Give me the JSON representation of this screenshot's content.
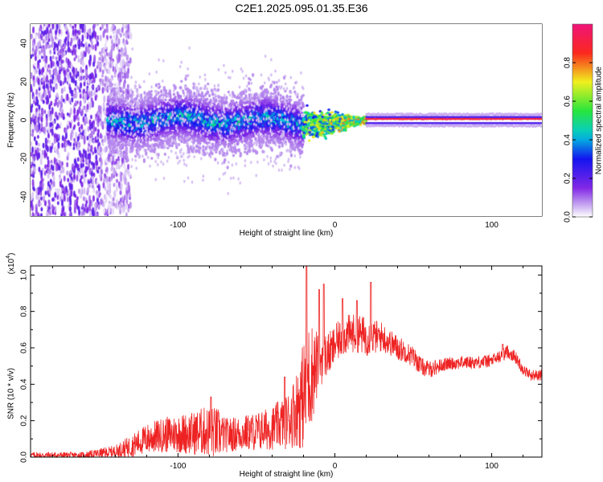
{
  "title": "C2E1.2025.095.01.35.E36",
  "colors": {
    "snr_line": "#ee2222",
    "axis": "#000000",
    "spectro_background": "#ffffff"
  },
  "chart_data": [
    {
      "type": "heatmap",
      "title": "C2E1.2025.095.01.35.E36",
      "xlabel": "Height of straight line (km)",
      "ylabel": "Frequency (Hz)",
      "xlim": [
        -194,
        132
      ],
      "ylim": [
        -50,
        50
      ],
      "xticks": [
        -100,
        0,
        100
      ],
      "yticks": [
        -40,
        -20,
        0,
        20,
        40
      ],
      "grid": false,
      "colorbar": {
        "label": "Normalized spectral amplitude",
        "range": [
          0.0,
          1.0
        ],
        "ticks": [
          0.0,
          0.2,
          0.4,
          0.6,
          0.8
        ],
        "colormap": "white-violet-blue-cyan-green-yellow-red-magenta"
      },
      "regions": [
        {
          "x_range": [
            -194,
            -130
          ],
          "frequency_spread": [
            -50,
            50
          ],
          "amplitude": 0.15,
          "pattern": "scattered speckle across full band"
        },
        {
          "x_range": [
            -145,
            -20
          ],
          "frequency_spread": [
            -15,
            15
          ],
          "amplitude": 0.25,
          "pattern": "broad noisy band, blue with cyan/green spots"
        },
        {
          "x_range": [
            -20,
            20
          ],
          "frequency_spread": [
            -5,
            5
          ],
          "amplitude": 0.5,
          "pattern": "narrowing band with cyan/yellow/red blobs"
        },
        {
          "x_range": [
            20,
            132
          ],
          "frequency_spread": [
            -1.5,
            1.5
          ],
          "amplitude": 0.9,
          "pattern": "narrow red line centered at 0 Hz"
        }
      ]
    },
    {
      "type": "line",
      "xlabel": "Height of straight line (km)",
      "ylabel": "SNR (10 * v/v)",
      "y_multiplier_label": "(x10",
      "y_multiplier_exp": "4",
      "y_multiplier_close": ")",
      "xlim": [
        -194,
        132
      ],
      "ylim": [
        0,
        1.05
      ],
      "xticks": [
        -100,
        0,
        100
      ],
      "yticks": [
        0.0,
        0.2,
        0.4,
        0.6,
        0.8,
        1.0
      ],
      "grid": false,
      "series": [
        {
          "color": "#ee2222",
          "envelope": {
            "x": [
              -194,
              -160,
              -140,
              -130,
              -120,
              -110,
              -100,
              -90,
              -85,
              -80,
              -75,
              -70,
              -60,
              -50,
              -40,
              -30,
              -25,
              -20,
              -18,
              -15,
              -12,
              -10,
              -8,
              -5,
              -2,
              0,
              5,
              10,
              15,
              20,
              25,
              30,
              35,
              40,
              45,
              50,
              55,
              60,
              70,
              80,
              90,
              100,
              105,
              110,
              115,
              120,
              125,
              132
            ],
            "mean": [
              0.01,
              0.01,
              0.03,
              0.06,
              0.1,
              0.12,
              0.13,
              0.13,
              0.14,
              0.14,
              0.13,
              0.12,
              0.13,
              0.14,
              0.16,
              0.2,
              0.26,
              0.34,
              0.4,
              0.46,
              0.5,
              0.52,
              0.55,
              0.56,
              0.58,
              0.62,
              0.66,
              0.68,
              0.68,
              0.66,
              0.66,
              0.66,
              0.63,
              0.6,
              0.58,
              0.55,
              0.5,
              0.48,
              0.51,
              0.52,
              0.52,
              0.53,
              0.55,
              0.58,
              0.55,
              0.48,
              0.45,
              0.45
            ],
            "spread": [
              0.015,
              0.015,
              0.03,
              0.05,
              0.07,
              0.08,
              0.09,
              0.1,
              0.11,
              0.12,
              0.12,
              0.08,
              0.08,
              0.09,
              0.1,
              0.13,
              0.17,
              0.25,
              0.28,
              0.24,
              0.18,
              0.14,
              0.12,
              0.1,
              0.1,
              0.09,
              0.09,
              0.09,
              0.09,
              0.09,
              0.08,
              0.07,
              0.06,
              0.06,
              0.05,
              0.05,
              0.04,
              0.04,
              0.03,
              0.03,
              0.03,
              0.03,
              0.03,
              0.03,
              0.03,
              0.025,
              0.025,
              0.025
            ]
          },
          "peaks": [
            {
              "x": -79,
              "y": 0.33
            },
            {
              "x": -32,
              "y": 0.44
            },
            {
              "x": -18,
              "y": 1.05
            },
            {
              "x": -10,
              "y": 0.92
            },
            {
              "x": -7,
              "y": 0.95
            },
            {
              "x": 5,
              "y": 0.87
            },
            {
              "x": 14,
              "y": 0.86
            },
            {
              "x": 23,
              "y": 0.96
            },
            {
              "x": 107,
              "y": 0.62
            }
          ]
        }
      ]
    }
  ]
}
